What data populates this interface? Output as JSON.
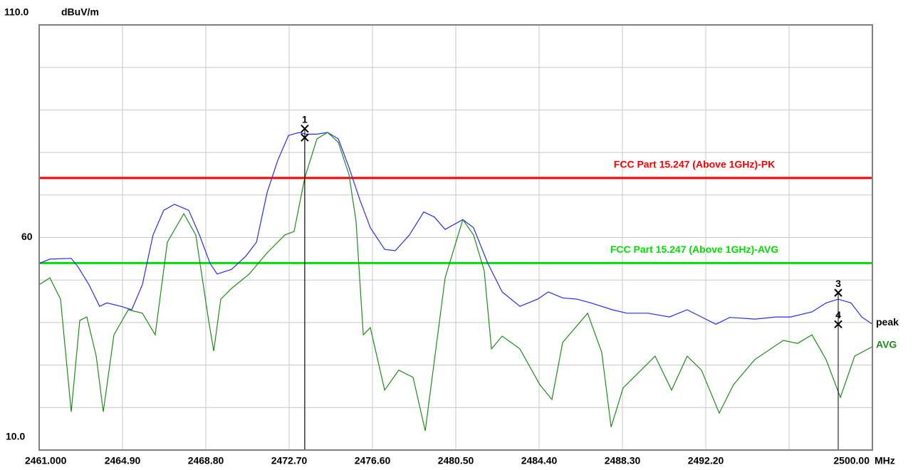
{
  "chart_data": {
    "type": "line",
    "y_unit": "dBuV/m",
    "x_unit": "MHz",
    "xlim": [
      2461,
      2500
    ],
    "ylim": [
      10,
      110
    ],
    "xticks": [
      {
        "value": 2461,
        "label": "2461.000"
      },
      {
        "value": 2464.9,
        "label": "2464.90"
      },
      {
        "value": 2468.8,
        "label": "2468.80"
      },
      {
        "value": 2472.7,
        "label": "2472.70"
      },
      {
        "value": 2476.6,
        "label": "2476.60"
      },
      {
        "value": 2480.5,
        "label": "2480.50"
      },
      {
        "value": 2484.4,
        "label": "2484.40"
      },
      {
        "value": 2488.3,
        "label": "2488.30"
      },
      {
        "value": 2492.2,
        "label": "2492.20"
      },
      {
        "value": 2496.1,
        "label": null
      },
      {
        "value": 2500,
        "label": "2500.00"
      }
    ],
    "yticks": [
      {
        "value": 110,
        "label": "110.0"
      },
      {
        "value": 100,
        "label": null
      },
      {
        "value": 90,
        "label": null
      },
      {
        "value": 80,
        "label": null
      },
      {
        "value": 70,
        "label": null
      },
      60,
      {
        "value": 50,
        "label": null
      },
      {
        "value": 40,
        "label": null
      },
      {
        "value": 30,
        "label": null
      },
      {
        "value": 20,
        "label": null
      },
      {
        "value": 10,
        "label": "10.0"
      }
    ],
    "grid": true,
    "limits": [
      {
        "name": "FCC Part 15.247 (Above 1GHz)-PK",
        "value": 74,
        "color": "#ff0000"
      },
      {
        "name": "FCC Part 15.247 (Above 1GHz)-AVG",
        "value": 54,
        "color": "#00e000"
      }
    ],
    "series": [
      {
        "name": "peak",
        "color": "#2a2aff",
        "x": [
          2461.0,
          2461.5,
          2462.5,
          2462.83,
          2463.33,
          2463.83,
          2464.17,
          2464.83,
          2465.33,
          2465.83,
          2466.33,
          2466.83,
          2467.33,
          2468.0,
          2468.5,
          2469.0,
          2469.33,
          2470.0,
          2470.67,
          2471.17,
          2471.67,
          2472.17,
          2472.67,
          2473.17,
          2473.5,
          2474.0,
          2474.5,
          2475.0,
          2475.5,
          2476.0,
          2476.5,
          2477.17,
          2477.67,
          2478.33,
          2479.0,
          2479.5,
          2480.0,
          2480.83,
          2481.33,
          2482.0,
          2482.67,
          2483.5,
          2484.33,
          2484.83,
          2485.5,
          2486.17,
          2486.83,
          2487.83,
          2488.5,
          2489.5,
          2490.5,
          2491.33,
          2492.0,
          2492.67,
          2493.33,
          2494.5,
          2495.5,
          2496.17,
          2497.17,
          2497.83,
          2498.4,
          2499.0,
          2499.5,
          2500.0
        ],
        "values": [
          53.9,
          54.9,
          55.1,
          53.0,
          48.9,
          43.8,
          44.6,
          43.8,
          43.0,
          48.9,
          60.6,
          66.4,
          67.8,
          66.4,
          60.6,
          53.9,
          51.4,
          52.5,
          55.6,
          58.9,
          70.6,
          78.2,
          84.0,
          84.7,
          84.3,
          84.3,
          84.7,
          83.2,
          76.5,
          69.0,
          62.3,
          57.2,
          56.9,
          60.6,
          66.0,
          64.8,
          61.9,
          64.2,
          62.3,
          53.9,
          47.2,
          43.8,
          45.5,
          47.2,
          45.8,
          45.5,
          44.6,
          43.0,
          42.2,
          42.2,
          41.3,
          43.0,
          41.3,
          39.6,
          41.2,
          40.8,
          41.3,
          41.3,
          42.5,
          44.6,
          45.5,
          44.6,
          41.3,
          39.6
        ]
      },
      {
        "name": "AVG",
        "color": "#1e8c1e",
        "x": [
          2461.0,
          2461.5,
          2462.0,
          2462.5,
          2462.9,
          2463.23,
          2463.67,
          2464.0,
          2464.5,
          2465.17,
          2465.83,
          2466.43,
          2467.0,
          2467.77,
          2468.33,
          2468.93,
          2469.17,
          2469.5,
          2470.0,
          2470.83,
          2471.67,
          2472.5,
          2472.93,
          2473.43,
          2474.0,
          2474.5,
          2475.0,
          2475.5,
          2475.83,
          2476.17,
          2476.5,
          2477.17,
          2477.83,
          2478.5,
          2479.07,
          2479.33,
          2480.0,
          2480.83,
          2481.33,
          2481.83,
          2482.17,
          2482.67,
          2483.5,
          2484.43,
          2485.0,
          2485.5,
          2486.67,
          2487.33,
          2487.77,
          2488.33,
          2489.17,
          2489.83,
          2490.6,
          2491.33,
          2492.0,
          2492.83,
          2493.5,
          2494.5,
          2495.83,
          2496.5,
          2497.17,
          2497.83,
          2498.5,
          2499.17,
          2500.0
        ],
        "values": [
          48.9,
          50.5,
          45.5,
          19.0,
          40.5,
          41.3,
          32.1,
          19.0,
          37.1,
          43.0,
          42.2,
          37.1,
          58.9,
          65.6,
          60.6,
          40.5,
          33.3,
          45.5,
          48.0,
          51.4,
          56.4,
          60.6,
          61.4,
          74.0,
          83.2,
          84.7,
          82.4,
          74.8,
          63.9,
          37.1,
          38.8,
          24.1,
          28.8,
          27.1,
          14.5,
          24.6,
          50.5,
          64.2,
          60.6,
          52.2,
          33.8,
          36.8,
          33.8,
          25.4,
          21.9,
          35.3,
          42.2,
          33.0,
          15.4,
          24.6,
          28.8,
          32.1,
          24.1,
          32.1,
          28.8,
          18.7,
          25.4,
          31.3,
          35.8,
          35.1,
          37.1,
          31.3,
          22.4,
          32.1,
          34.3
        ]
      }
    ],
    "markers": [
      {
        "label": "1",
        "x": 2473.43,
        "value": 85.6
      },
      {
        "label": null,
        "x": 2473.43,
        "value": 83.5
      },
      {
        "label": "3",
        "x": 2498.4,
        "value": 47.0
      },
      {
        "label": "4",
        "x": 2498.4,
        "value": 39.6
      }
    ]
  }
}
